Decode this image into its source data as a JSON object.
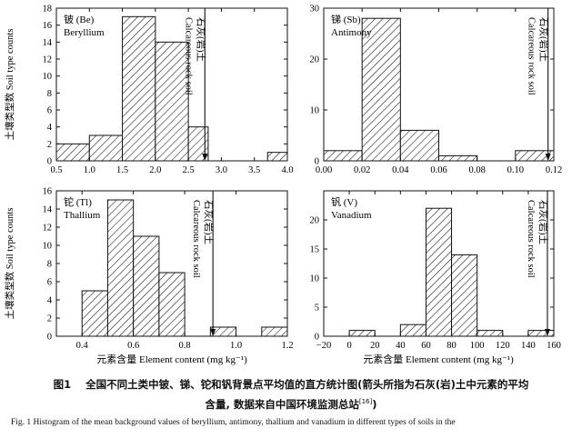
{
  "chart_data": [
    {
      "type": "bar",
      "series_label_zh": "铍 (Be)",
      "series_label_en": "Beryllium",
      "bin_edges": [
        0.5,
        1.0,
        1.5,
        2.0,
        2.5,
        3.0,
        3.5,
        4.0
      ],
      "values": [
        2,
        3,
        17,
        14,
        4,
        0,
        1
      ],
      "bars": [
        {
          "x0": 0.5,
          "x1": 1.0,
          "count": 2
        },
        {
          "x0": 1.0,
          "x1": 1.5,
          "count": 3
        },
        {
          "x0": 1.5,
          "x1": 2.0,
          "count": 17
        },
        {
          "x0": 2.0,
          "x1": 2.5,
          "count": 14
        },
        {
          "x0": 2.5,
          "x1": 2.8,
          "count": 4
        },
        {
          "x0": 3.7,
          "x1": 4.0,
          "count": 1
        }
      ],
      "marker_x": 2.75,
      "marker_label_zh": "石灰(岩)土",
      "marker_label_en": "Calcareous rock soil",
      "xlim": [
        0.5,
        4.0
      ],
      "ylim": [
        0,
        18
      ],
      "xticks": [
        "0.5",
        "1.0",
        "1.5",
        "2.0",
        "2.5",
        "3.0",
        "3.5",
        "4.0"
      ],
      "yticks": [
        "0",
        "2",
        "4",
        "6",
        "8",
        "10",
        "12",
        "14",
        "16",
        "18"
      ]
    },
    {
      "type": "bar",
      "series_label_zh": "锑 (Sb)",
      "series_label_en": "Antimony",
      "bars": [
        {
          "x0": 0.0,
          "x1": 0.02,
          "count": 2
        },
        {
          "x0": 0.02,
          "x1": 0.04,
          "count": 28
        },
        {
          "x0": 0.04,
          "x1": 0.06,
          "count": 6
        },
        {
          "x0": 0.06,
          "x1": 0.08,
          "count": 1
        },
        {
          "x0": 0.1,
          "x1": 0.12,
          "count": 2
        }
      ],
      "marker_x": 0.117,
      "marker_label_zh": "石灰(岩)土",
      "marker_label_en": "Calcareous rock soil",
      "xlim": [
        0.0,
        0.12
      ],
      "ylim": [
        0,
        30
      ],
      "xticks": [
        "0.00",
        "0.02",
        "0.04",
        "0.06",
        "0.08",
        "0.10",
        "0.12"
      ],
      "yticks": [
        "0",
        "10",
        "20",
        "30"
      ]
    },
    {
      "type": "bar",
      "series_label_zh": "铊 (Tl)",
      "series_label_en": "Thallium",
      "bars": [
        {
          "x0": 0.4,
          "x1": 0.5,
          "count": 5
        },
        {
          "x0": 0.5,
          "x1": 0.6,
          "count": 15
        },
        {
          "x0": 0.6,
          "x1": 0.7,
          "count": 11
        },
        {
          "x0": 0.7,
          "x1": 0.8,
          "count": 7
        },
        {
          "x0": 0.9,
          "x1": 1.0,
          "count": 1
        },
        {
          "x0": 1.1,
          "x1": 1.2,
          "count": 1
        }
      ],
      "marker_x": 0.91,
      "marker_label_zh": "石灰(岩)土",
      "marker_label_en": "Calcareous rock soil",
      "xlim": [
        0.3,
        1.2
      ],
      "ylim": [
        0,
        16
      ],
      "xticks": [
        "0.4",
        "0.6",
        "0.8",
        "1.0",
        "1.2"
      ],
      "yticks": [
        "0",
        "2",
        "4",
        "6",
        "8",
        "10",
        "12",
        "14",
        "16"
      ]
    },
    {
      "type": "bar",
      "series_label_zh": "钒 (V)",
      "series_label_en": "Vanadium",
      "bars": [
        {
          "x0": 0,
          "x1": 20,
          "count": 1
        },
        {
          "x0": 40,
          "x1": 60,
          "count": 2
        },
        {
          "x0": 60,
          "x1": 80,
          "count": 22
        },
        {
          "x0": 80,
          "x1": 100,
          "count": 14
        },
        {
          "x0": 100,
          "x1": 120,
          "count": 1
        },
        {
          "x0": 140,
          "x1": 160,
          "count": 1
        }
      ],
      "marker_x": 155,
      "marker_label_zh": "石灰(岩)土",
      "marker_label_en": "Calcareous rock soil",
      "xlim": [
        -20,
        160
      ],
      "ylim": [
        0,
        25
      ],
      "xticks": [
        "−20",
        "0",
        "20",
        "40",
        "60",
        "80",
        "100",
        "120",
        "140",
        "160"
      ],
      "yticks": [
        "0",
        "5",
        "10",
        "15",
        "20"
      ]
    }
  ],
  "ylabel": "土壤类型数 Soil type counts",
  "xlabel": "元素含量  Element content (mg kg⁻¹)",
  "caption": {
    "fig_num_zh": "图1",
    "line1_zh": "全国不同土类中铍、锑、铊和钒背景点平均值的直方统计图(箭头所指为石灰(岩)土中元素的平均",
    "line2_zh": "含量, 数据来自中国环境监测总站",
    "line2_ref": "[16]",
    "line2_end": ")",
    "en_line1": "Fig. 1    Histogram of the mean background values of beryllium, antimony, thallium and vanadium in different types of soils in the"
  }
}
